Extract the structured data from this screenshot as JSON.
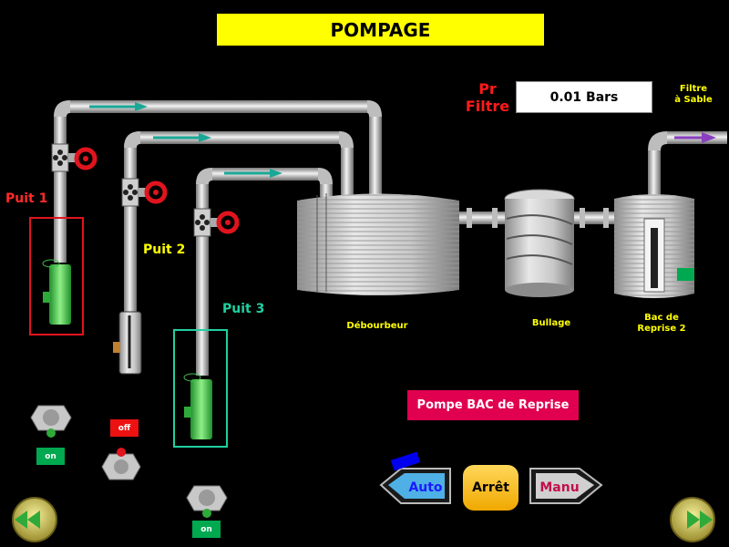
{
  "header": {
    "title": "POMPAGE"
  },
  "pressure": {
    "label_line1": "Pr",
    "label_line2": "Filtre",
    "value": "0.01 Bars"
  },
  "filter": {
    "label_line1": "Filtre",
    "label_line2": "à Sable"
  },
  "wells": [
    {
      "label": "Puit 1",
      "color": "#ff2a2a",
      "state": "on"
    },
    {
      "label": "Puit 2",
      "color": "#ffff00",
      "state": "off"
    },
    {
      "label": "Puit 3",
      "color": "#1fd0a0",
      "state": "on"
    }
  ],
  "tanks": [
    {
      "label_line1": "Débourbeur",
      "label_line2": ""
    },
    {
      "label_line1": "Bullage",
      "label_line2": ""
    },
    {
      "label_line1": "Bac de",
      "label_line2": "Reprise 2"
    }
  ],
  "switches": {
    "sw1": "on",
    "sw2": "off",
    "sw3": "on"
  },
  "pump_bac_reprise": {
    "label": "Pompe BAC de Reprise"
  },
  "modes": {
    "auto": "Auto",
    "stop": "Arrêt",
    "manual": "Manu",
    "active": "auto"
  },
  "colors": {
    "title_bg": "#ffff00",
    "pump_btn": "#e0004f",
    "on": "#00a84f",
    "off": "#ee1111",
    "flow_arrow": "#1aa896",
    "filter_arrow": "#8a3fc0"
  }
}
